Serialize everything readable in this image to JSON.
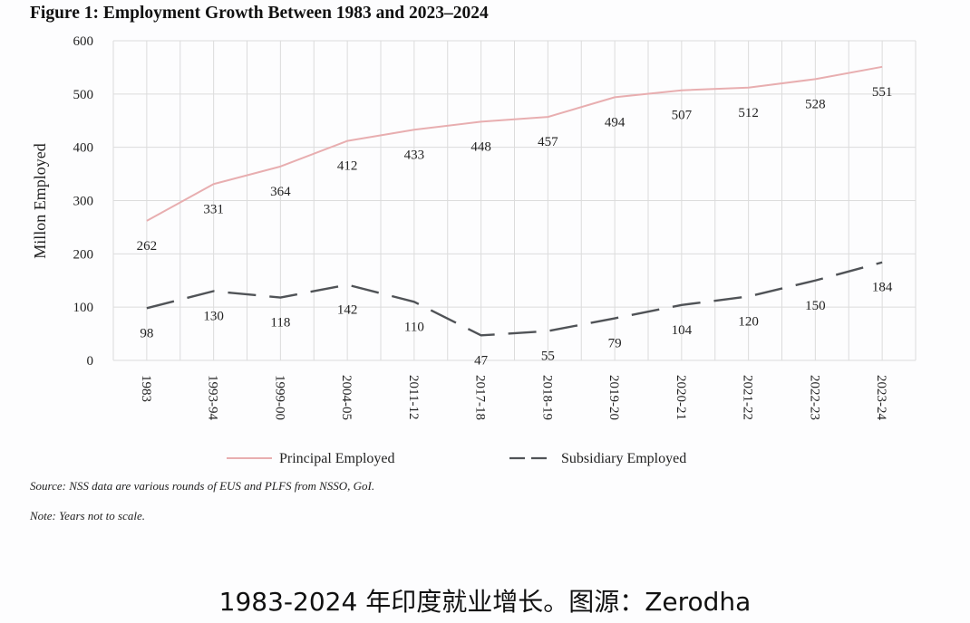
{
  "chart_data": {
    "type": "line",
    "title": "Figure 1: Employment Growth Between 1983 and 2023–2024",
    "xlabel": "",
    "ylabel": "Millon Employed",
    "ylim": [
      0,
      600
    ],
    "yticks": [
      0,
      100,
      200,
      300,
      400,
      500,
      600
    ],
    "grid": true,
    "categories": [
      "1983",
      "1993-94",
      "1999-00",
      "2004-05",
      "2011-12",
      "2017-18",
      "2018-19",
      "2019-20",
      "2020-21",
      "2021-22",
      "2022-23",
      "2023-24"
    ],
    "series": [
      {
        "name": "Principal Employed",
        "style": "solid",
        "color": "#e8aeb0",
        "values": [
          262,
          331,
          364,
          412,
          433,
          448,
          457,
          494,
          507,
          512,
          528,
          551
        ]
      },
      {
        "name": "Subsidiary Employed",
        "style": "dashed",
        "color": "#505357",
        "values": [
          98,
          130,
          118,
          142,
          110,
          47,
          55,
          79,
          104,
          120,
          150,
          184
        ]
      }
    ],
    "legend_position": "bottom"
  },
  "notes": {
    "source": "Source: NSS data are various rounds of EUS and PLFS from NSSO, GoI.",
    "note": "Note: Years not to scale."
  },
  "caption": "1983-2024 年印度就业增长。图源：Zerodha",
  "colors": {
    "grid": "#dcdcdc",
    "principal": "#e8aeb0",
    "subsidiary": "#505357"
  }
}
